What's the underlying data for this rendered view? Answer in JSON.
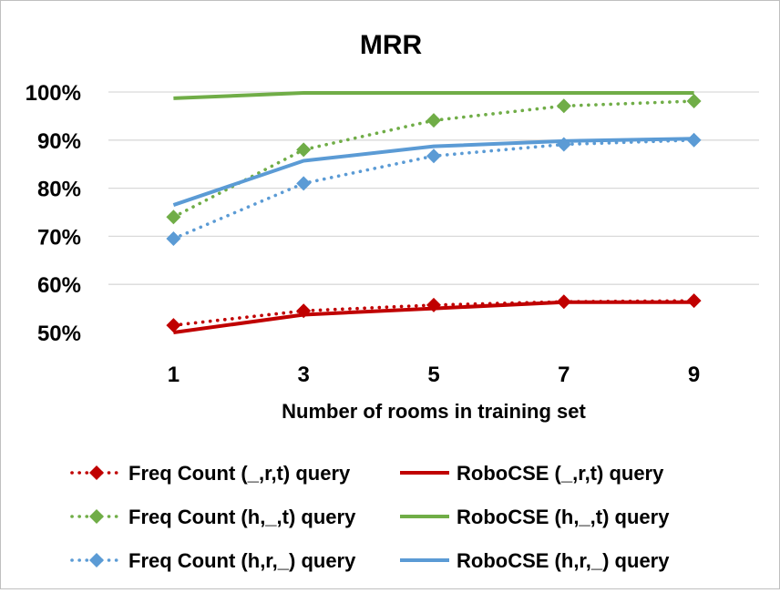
{
  "chart_data": {
    "type": "line",
    "title": "MRR",
    "xlabel": "Number of rooms in training set",
    "ylabel": "",
    "x": [
      1,
      3,
      5,
      7,
      9
    ],
    "x_tick_labels": [
      "1",
      "3",
      "5",
      "7",
      "9"
    ],
    "ylim": [
      0.5,
      1.0
    ],
    "y_ticks": [
      0.5,
      0.6,
      0.7,
      0.8,
      0.9,
      1.0
    ],
    "y_tick_labels": [
      "50%",
      "60%",
      "70%",
      "80%",
      "90%",
      "100%"
    ],
    "grid": "horizontal",
    "legend_position": "bottom",
    "series": [
      {
        "name": "Freq Count (_,r,t) query",
        "values": [
          0.515,
          0.545,
          0.557,
          0.564,
          0.566
        ],
        "color": "#c00000",
        "style": "dotted",
        "marker": "diamond"
      },
      {
        "name": "RoboCSE (_,r,t) query",
        "values": [
          0.5,
          0.537,
          0.55,
          0.563,
          0.563
        ],
        "color": "#c00000",
        "style": "solid",
        "marker": "none"
      },
      {
        "name": "Freq Count (h,_,t) query",
        "values": [
          0.74,
          0.88,
          0.941,
          0.971,
          0.981
        ],
        "color": "#70ad47",
        "style": "dotted",
        "marker": "diamond"
      },
      {
        "name": "RoboCSE (h,_,t) query",
        "values": [
          0.987,
          0.998,
          0.998,
          0.998,
          0.998
        ],
        "color": "#70ad47",
        "style": "solid",
        "marker": "none"
      },
      {
        "name": "Freq Count (h,r,_) query",
        "values": [
          0.695,
          0.81,
          0.867,
          0.891,
          0.9
        ],
        "color": "#5b9bd5",
        "style": "dotted",
        "marker": "diamond"
      },
      {
        "name": "RoboCSE (h,r,_) query",
        "values": [
          0.765,
          0.857,
          0.887,
          0.898,
          0.903
        ],
        "color": "#5b9bd5",
        "style": "solid",
        "marker": "none"
      }
    ]
  }
}
